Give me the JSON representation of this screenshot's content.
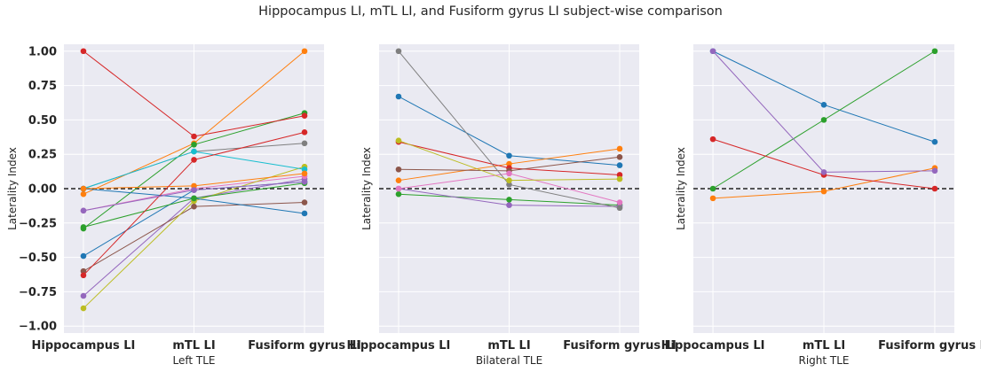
{
  "suptitle": "Hippocampus LI, mTL LI, and Fusiform gyrus LI subject-wise comparison",
  "chart_data": [
    {
      "type": "line",
      "xlabel": "Left TLE",
      "ylabel": "Laterality Index",
      "categories": [
        "Hippocampus LI",
        "mTL LI",
        "Fusiform gyrus LI"
      ],
      "ylim": [
        -1.05,
        1.05
      ],
      "yticks": [
        "1.00",
        "0.75",
        "0.50",
        "0.25",
        "0.00",
        "−0.25",
        "−0.50",
        "−0.75",
        "−1.00"
      ],
      "reference_line": 0,
      "grid": true,
      "series": [
        {
          "color": "#1f77b4",
          "values": [
            -0.49,
            -0.01,
            0.05
          ]
        },
        {
          "color": "#ff7f0e",
          "values": [
            -0.04,
            0.33,
            1.0
          ]
        },
        {
          "color": "#2ca02c",
          "values": [
            -0.29,
            0.32,
            0.55
          ]
        },
        {
          "color": "#d62728",
          "values": [
            1.0,
            0.38,
            0.53
          ]
        },
        {
          "color": "#9467bd",
          "values": [
            -0.78,
            -0.07,
            0.07
          ]
        },
        {
          "color": "#8c564b",
          "values": [
            -0.6,
            -0.13,
            -0.1
          ]
        },
        {
          "color": "#e377c2",
          "values": [
            -0.16,
            0.0,
            0.09
          ]
        },
        {
          "color": "#7f7f7f",
          "values": [
            0.0,
            0.27,
            0.33
          ]
        },
        {
          "color": "#bcbd22",
          "values": [
            -0.87,
            -0.09,
            0.16
          ]
        },
        {
          "color": "#17becf",
          "values": [
            0.0,
            0.27,
            0.14
          ]
        },
        {
          "color": "#1f77b4",
          "values": [
            0.0,
            -0.07,
            -0.18
          ]
        },
        {
          "color": "#ff7f0e",
          "values": [
            0.0,
            0.02,
            0.11
          ]
        },
        {
          "color": "#2ca02c",
          "values": [
            -0.28,
            -0.07,
            0.04
          ]
        },
        {
          "color": "#d62728",
          "values": [
            -0.63,
            0.21,
            0.41
          ]
        },
        {
          "color": "#9467bd",
          "values": [
            -0.16,
            -0.01,
            0.05
          ]
        }
      ]
    },
    {
      "type": "line",
      "xlabel": "Bilateral TLE",
      "ylabel": "Laterality Index",
      "categories": [
        "Hippocampus LI",
        "mTL LI",
        "Fusiform gyrus LI"
      ],
      "ylim": [
        -1.05,
        1.05
      ],
      "reference_line": 0,
      "grid": true,
      "series": [
        {
          "color": "#1f77b4",
          "values": [
            0.67,
            0.24,
            0.17
          ]
        },
        {
          "color": "#ff7f0e",
          "values": [
            0.06,
            0.18,
            0.29
          ]
        },
        {
          "color": "#2ca02c",
          "values": [
            -0.04,
            -0.08,
            -0.12
          ]
        },
        {
          "color": "#d62728",
          "values": [
            0.34,
            0.15,
            0.1
          ]
        },
        {
          "color": "#9467bd",
          "values": [
            0.0,
            -0.12,
            -0.13
          ]
        },
        {
          "color": "#8c564b",
          "values": [
            0.14,
            0.13,
            0.23
          ]
        },
        {
          "color": "#e377c2",
          "values": [
            0.0,
            0.11,
            -0.1
          ]
        },
        {
          "color": "#7f7f7f",
          "values": [
            1.0,
            0.03,
            -0.14
          ]
        },
        {
          "color": "#bcbd22",
          "values": [
            0.35,
            0.06,
            0.07
          ]
        }
      ]
    },
    {
      "type": "line",
      "xlabel": "Right TLE",
      "ylabel": "Laterality Index",
      "categories": [
        "Hippocampus LI",
        "mTL LI",
        "Fusiform gyrus LI"
      ],
      "ylim": [
        -1.05,
        1.05
      ],
      "reference_line": 0,
      "grid": true,
      "series": [
        {
          "color": "#1f77b4",
          "values": [
            1.0,
            0.61,
            0.34
          ]
        },
        {
          "color": "#ff7f0e",
          "values": [
            -0.07,
            -0.02,
            0.15
          ]
        },
        {
          "color": "#2ca02c",
          "values": [
            0.0,
            0.5,
            1.0
          ]
        },
        {
          "color": "#d62728",
          "values": [
            0.36,
            0.1,
            0.0
          ]
        },
        {
          "color": "#9467bd",
          "values": [
            1.0,
            0.12,
            0.13
          ]
        }
      ]
    }
  ]
}
